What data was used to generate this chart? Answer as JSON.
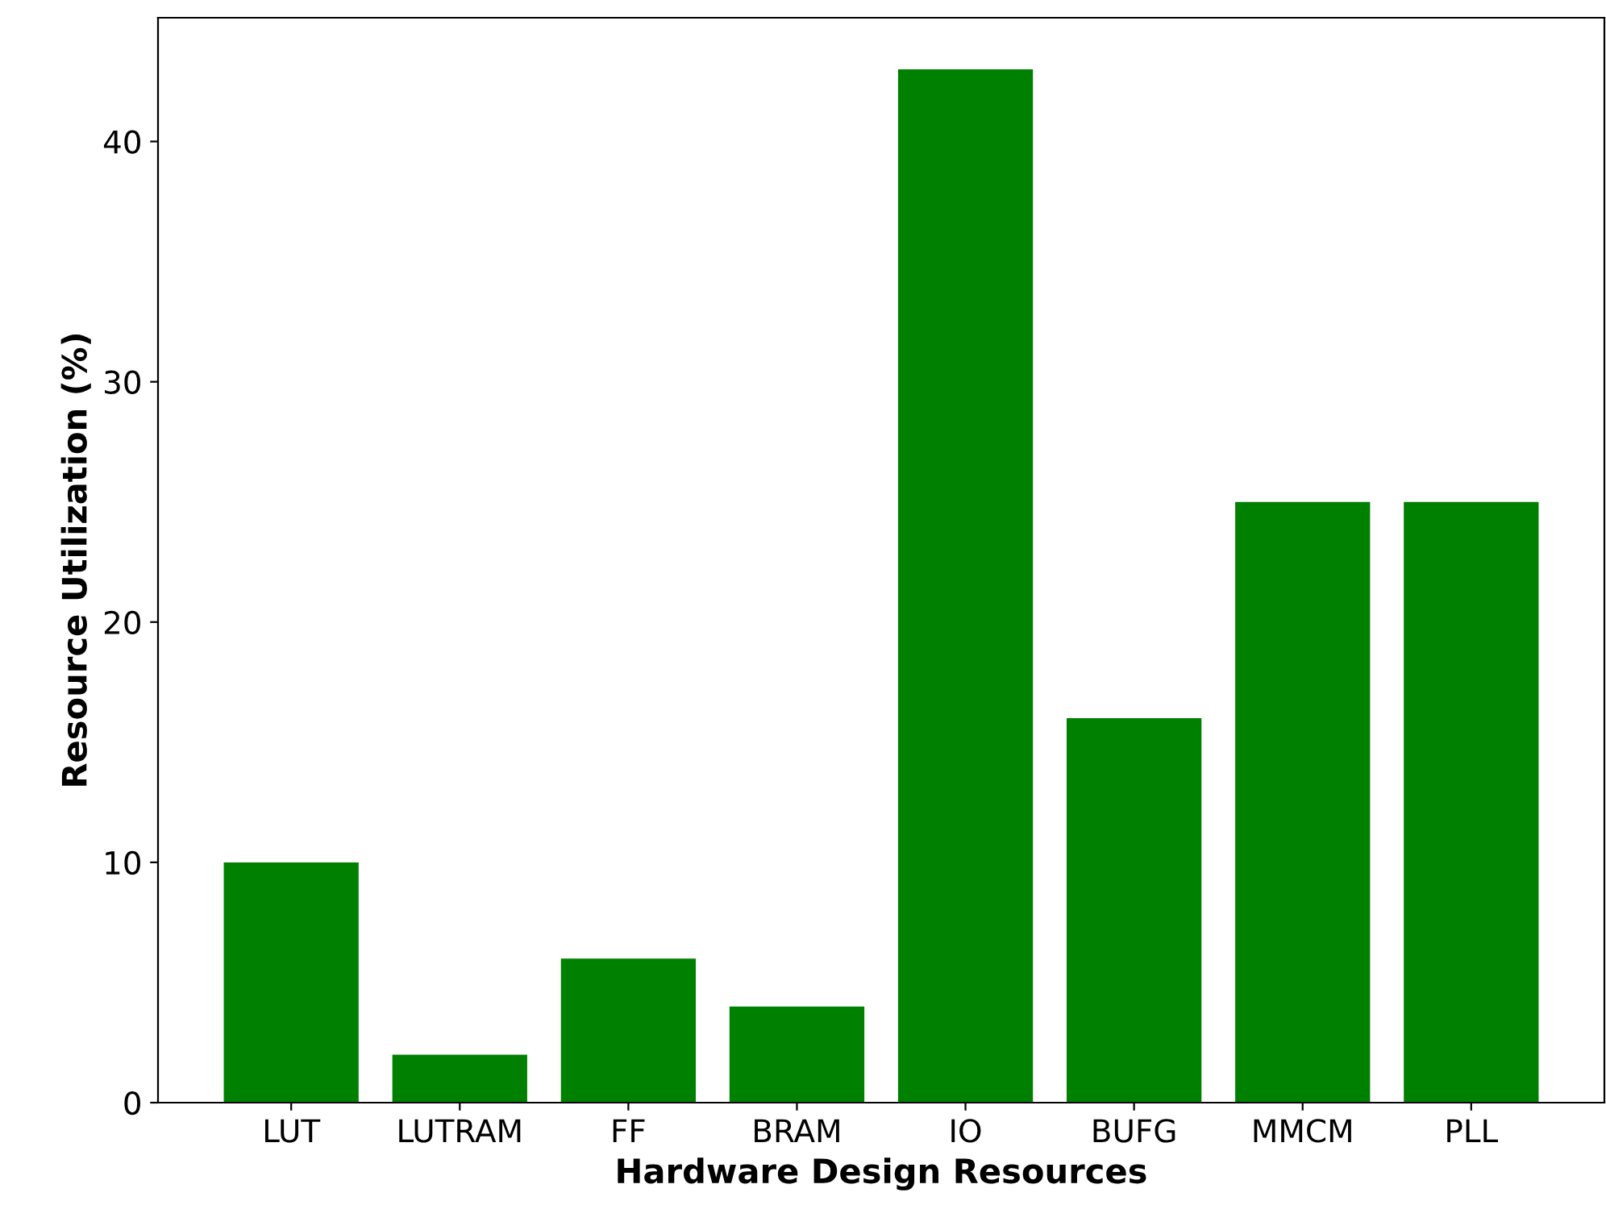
{
  "chart_data": {
    "type": "bar",
    "xlabel": "Hardware Design Resources",
    "ylabel": "Resource Utilization (%)",
    "categories": [
      "LUT",
      "LUTRAM",
      "FF",
      "BRAM",
      "IO",
      "BUFG",
      "MMCM",
      "PLL"
    ],
    "values": [
      10,
      2,
      6,
      4,
      43,
      16,
      25,
      25
    ],
    "color": "#008000",
    "ylim": [
      0,
      45.15
    ],
    "yticks": [
      0,
      10,
      20,
      30,
      40
    ],
    "grid": false
  }
}
